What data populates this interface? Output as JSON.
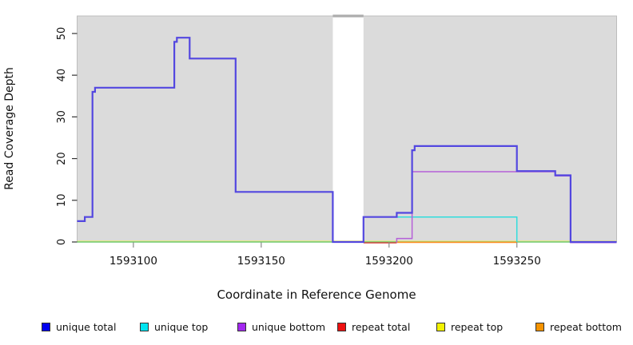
{
  "chart_data": {
    "type": "line",
    "subtype": "step-coverage",
    "title": "",
    "xlabel": "Coordinate in Reference Genome",
    "ylabel": "Read Coverage Depth",
    "xlim": [
      1593078,
      1593289
    ],
    "ylim": [
      0,
      54.2
    ],
    "x_ticks": [
      1593100,
      1593150,
      1593200,
      1593250
    ],
    "y_ticks": [
      0,
      10,
      20,
      30,
      40,
      50
    ],
    "grid": false,
    "plot_background": "#DBDBDB",
    "plot_border_color": "#BDBDBD",
    "gap_band": {
      "from": 1593178,
      "to": 1593190,
      "fill": "#FFFFFF",
      "cap_color": "#9B9B9B"
    },
    "series": [
      {
        "name": "repeat top",
        "color": "#EAEA80",
        "width": 1.2,
        "dy": -1.2,
        "points": [
          [
            1593078,
            0
          ]
        ],
        "end": 1593289
      },
      {
        "name": "zero baseline",
        "color": "#6FC86F",
        "width": 1.4,
        "dy": 0,
        "points": [
          [
            1593078,
            0
          ]
        ],
        "end": 1593289
      },
      {
        "name": "repeat total",
        "color": "#D93535",
        "width": 1.4,
        "dy": 1.1,
        "points": [
          [
            1593190,
            0
          ]
        ],
        "end": 1593203
      },
      {
        "name": "repeat bottom",
        "color": "#FF8E20",
        "width": 1.6,
        "dy": 0.4,
        "points": [
          [
            1593203,
            0
          ]
        ],
        "end": 1593250
      },
      {
        "name": "unique top",
        "color": "#30DCDC",
        "width": 1.5,
        "dy": 0,
        "points": [
          [
            1593190,
            0
          ],
          [
            1593190,
            6
          ],
          [
            1593250,
            6
          ],
          [
            1593250,
            0
          ]
        ],
        "end": 1593250
      },
      {
        "name": "unique bottom",
        "color": "#B55FD8",
        "width": 1.5,
        "dy": 0.8,
        "points": [
          [
            1593203,
            0
          ],
          [
            1593203,
            1
          ],
          [
            1593209,
            17
          ],
          [
            1593265,
            16
          ],
          [
            1593271,
            0
          ]
        ],
        "end": 1593289
      },
      {
        "name": "unique total",
        "color": "#5347E0",
        "width": 2.2,
        "dy": 0,
        "points": [
          [
            1593078,
            5
          ],
          [
            1593081,
            6
          ],
          [
            1593084,
            36
          ],
          [
            1593085,
            37
          ],
          [
            1593116,
            48
          ],
          [
            1593117,
            49
          ],
          [
            1593122,
            44
          ],
          [
            1593140,
            12
          ],
          [
            1593178,
            0
          ],
          [
            1593190,
            6
          ],
          [
            1593203,
            7
          ],
          [
            1593209,
            22
          ],
          [
            1593210,
            23
          ],
          [
            1593250,
            17
          ],
          [
            1593265,
            16
          ],
          [
            1593271,
            0
          ]
        ],
        "end": 1593289
      }
    ]
  },
  "legend": {
    "items": [
      {
        "label": "unique total",
        "color": "#0000F0"
      },
      {
        "label": "unique top",
        "color": "#00E4F0"
      },
      {
        "label": "unique bottom",
        "color": "#A328F0"
      },
      {
        "label": "repeat total",
        "color": "#EE1111"
      },
      {
        "label": "repeat top",
        "color": "#F2F200"
      },
      {
        "label": "repeat bottom",
        "color": "#F59300"
      }
    ]
  }
}
